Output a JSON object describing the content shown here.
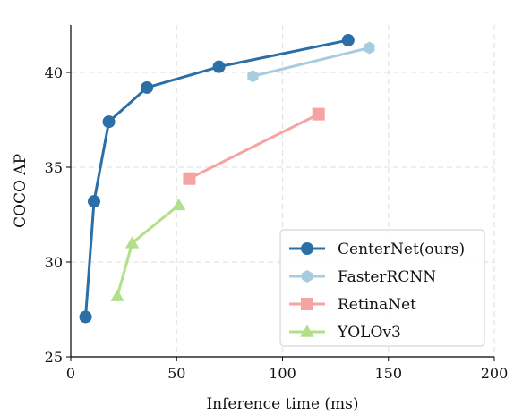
{
  "chart_data": {
    "type": "line",
    "title": "",
    "xlabel": "Inference time (ms)",
    "ylabel": "COCO AP",
    "xlim": [
      0,
      200
    ],
    "ylim": [
      25,
      42.5
    ],
    "xticks": [
      0,
      50,
      100,
      150,
      200
    ],
    "yticks": [
      25,
      30,
      35,
      40
    ],
    "grid": true,
    "legend_position": "bottom-right",
    "series": [
      {
        "name": "CenterNet(ours)",
        "color": "#2b6fa6",
        "marker": "circle",
        "points": [
          [
            7,
            27.1
          ],
          [
            11,
            33.2
          ],
          [
            18,
            37.4
          ],
          [
            36,
            39.2
          ],
          [
            70,
            40.3
          ],
          [
            131,
            41.7
          ]
        ]
      },
      {
        "name": "FasterRCNN",
        "color": "#a6cce0",
        "marker": "hexagon",
        "points": [
          [
            86,
            39.8
          ],
          [
            141,
            41.3
          ]
        ]
      },
      {
        "name": "RetinaNet",
        "color": "#f5a3a3",
        "marker": "square",
        "points": [
          [
            56,
            34.4
          ],
          [
            117,
            37.8
          ]
        ]
      },
      {
        "name": "YOLOv3",
        "color": "#b2df8a",
        "marker": "triangle",
        "points": [
          [
            22,
            28.2
          ],
          [
            29,
            31.0
          ],
          [
            51,
            33.0
          ]
        ]
      }
    ]
  }
}
